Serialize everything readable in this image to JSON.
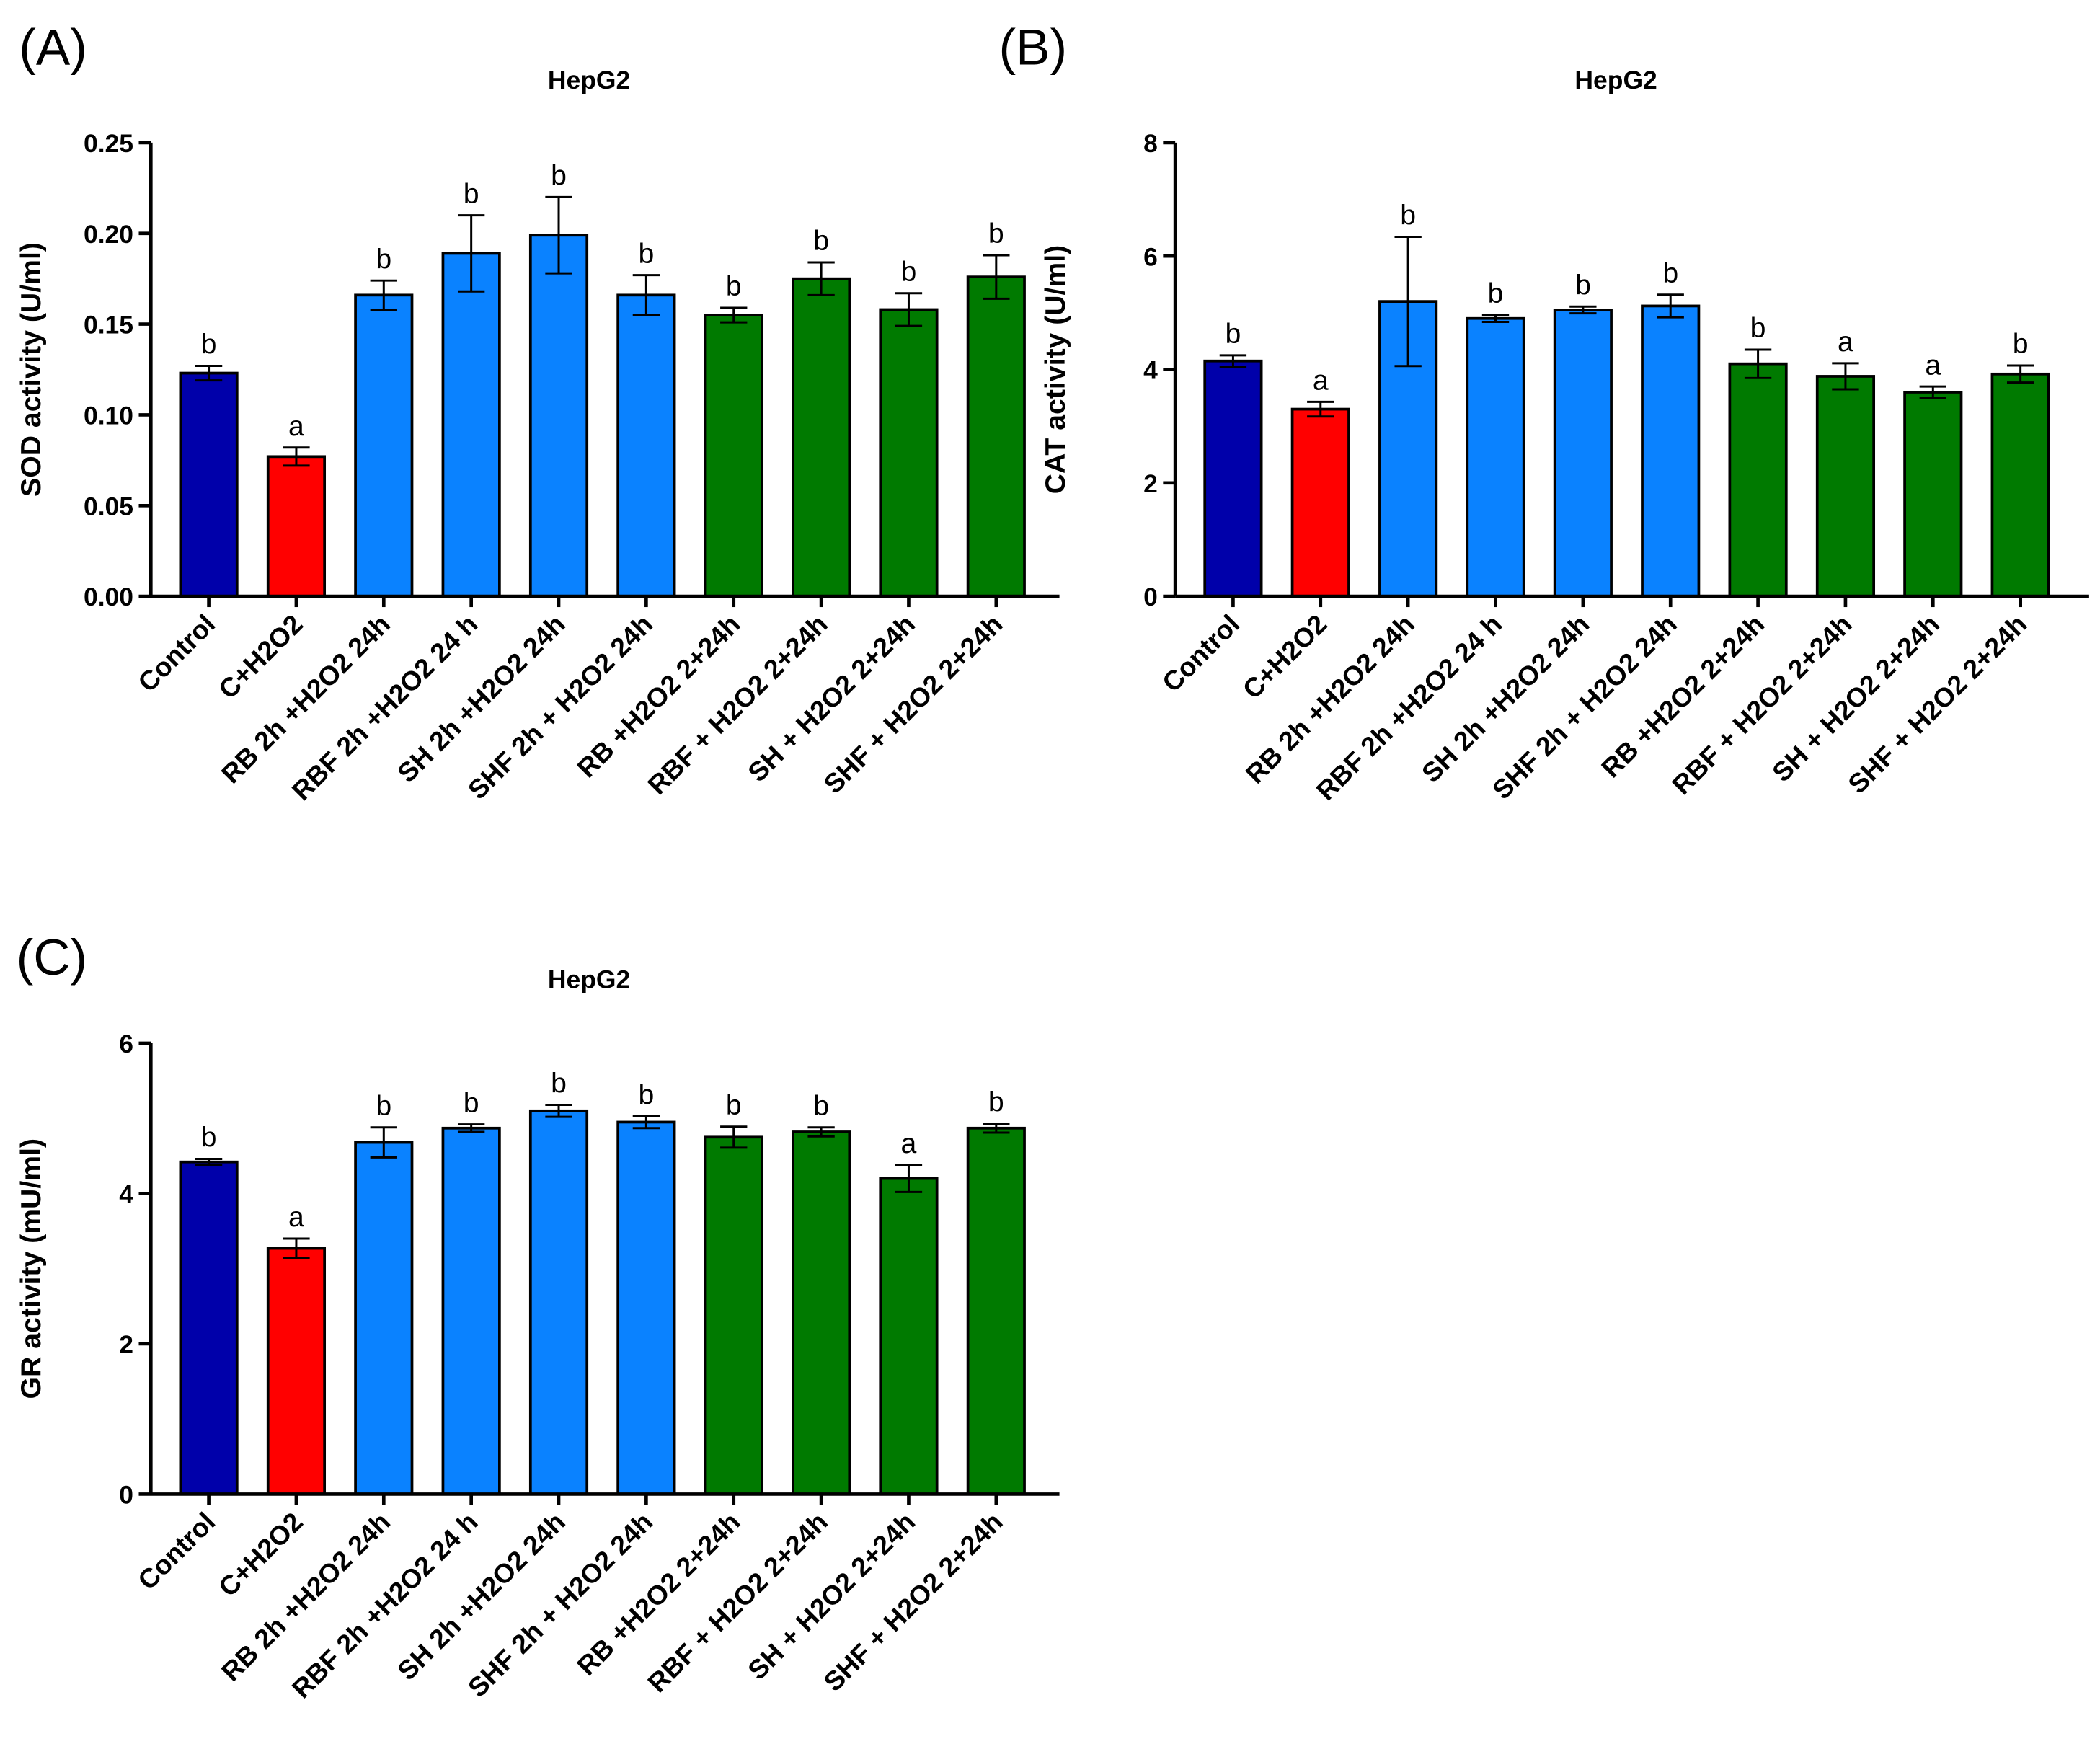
{
  "colors": {
    "control": "#0000AA",
    "h2o2": "#FF0000",
    "pre": "#0A82FF",
    "post": "#007A00"
  },
  "chart_data": [
    {
      "panel_label": "(A)",
      "type": "bar",
      "title": "HepG2",
      "xlabel": "",
      "ylabel": "SOD activity (U/ml)",
      "ylim": [
        0,
        0.25
      ],
      "yticks": [
        "0.00",
        "0.05",
        "0.10",
        "0.15",
        "0.20",
        "0.25"
      ],
      "categories": [
        "Control",
        "C+H2O2",
        "RB 2h +H2O2 24h",
        "RBF 2h +H2O2 24 h",
        "SH 2h +H2O2 24h",
        "SHF 2h + H2O2 24h",
        "RB +H2O2 2+24h",
        "RBF + H2O2 2+24h",
        "SH + H2O2 2+24h",
        "SHF + H2O2 2+24h"
      ],
      "groups": [
        "control",
        "h2o2",
        "pre",
        "pre",
        "pre",
        "pre",
        "post",
        "post",
        "post",
        "post"
      ],
      "values": [
        0.123,
        0.077,
        0.166,
        0.189,
        0.199,
        0.166,
        0.155,
        0.175,
        0.158,
        0.176
      ],
      "errors": [
        0.004,
        0.005,
        0.008,
        0.021,
        0.021,
        0.011,
        0.004,
        0.009,
        0.009,
        0.012
      ],
      "significance": [
        "b",
        "a",
        "b",
        "b",
        "b",
        "b",
        "b",
        "b",
        "b",
        "b"
      ]
    },
    {
      "panel_label": "(B)",
      "type": "bar",
      "title": "HepG2",
      "xlabel": "",
      "ylabel": "CAT activity (U/ml)",
      "ylim": [
        0,
        8
      ],
      "yticks": [
        "0",
        "2",
        "4",
        "6",
        "8"
      ],
      "categories": [
        "Control",
        "C+H2O2",
        "RB 2h +H2O2 24h",
        "RBF 2h +H2O2 24 h",
        "SH 2h +H2O2 24h",
        "SHF 2h + H2O2 24h",
        "RB +H2O2 2+24h",
        "RBF + H2O2 2+24h",
        "SH + H2O2 2+24h",
        "SHF + H2O2 2+24h"
      ],
      "groups": [
        "control",
        "h2o2",
        "pre",
        "pre",
        "pre",
        "pre",
        "post",
        "post",
        "post",
        "post"
      ],
      "values": [
        4.15,
        3.3,
        5.2,
        4.9,
        5.05,
        5.12,
        4.1,
        3.88,
        3.6,
        3.92
      ],
      "errors": [
        0.1,
        0.13,
        1.14,
        0.06,
        0.06,
        0.2,
        0.25,
        0.23,
        0.1,
        0.15
      ],
      "significance": [
        "b",
        "a",
        "b",
        "b",
        "b",
        "b",
        "b",
        "a",
        "a",
        "b"
      ]
    },
    {
      "panel_label": "(C)",
      "type": "bar",
      "title": "HepG2",
      "xlabel": "",
      "ylabel": "GR activity (mU/ml)",
      "ylim": [
        0,
        6
      ],
      "yticks": [
        "0",
        "2",
        "4",
        "6"
      ],
      "categories": [
        "Control",
        "C+H2O2",
        "RB 2h +H2O2 24h",
        "RBF 2h +H2O2 24 h",
        "SH 2h +H2O2 24h",
        "SHF 2h + H2O2 24h",
        "RB +H2O2 2+24h",
        "RBF + H2O2 2+24h",
        "SH + H2O2 2+24h",
        "SHF + H2O2 2+24h"
      ],
      "groups": [
        "control",
        "h2o2",
        "pre",
        "pre",
        "pre",
        "pre",
        "post",
        "post",
        "post",
        "post"
      ],
      "values": [
        4.42,
        3.27,
        4.68,
        4.87,
        5.1,
        4.95,
        4.75,
        4.82,
        4.2,
        4.87
      ],
      "errors": [
        0.04,
        0.13,
        0.2,
        0.05,
        0.08,
        0.08,
        0.14,
        0.06,
        0.18,
        0.06
      ],
      "significance": [
        "b",
        "a",
        "b",
        "b",
        "b",
        "b",
        "b",
        "b",
        "a",
        "b"
      ]
    }
  ]
}
